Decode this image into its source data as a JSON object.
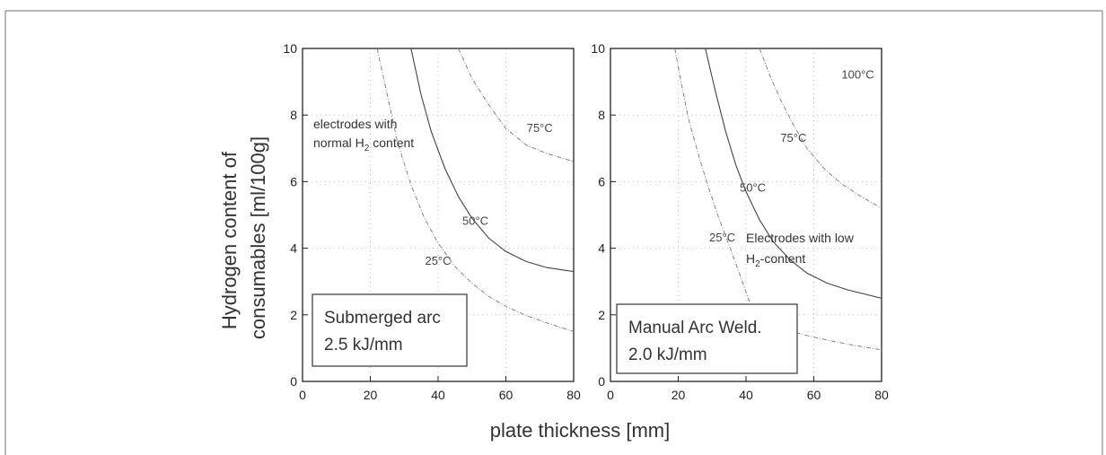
{
  "chart_data": [
    {
      "type": "line",
      "id": "submerged-arc",
      "xlabel": "plate thickness [mm]",
      "ylabel_lines": [
        "Hydrogen content of",
        "consumables [ml/100g]"
      ],
      "xlim": [
        0,
        80
      ],
      "ylim": [
        0,
        10
      ],
      "x_ticks": [
        0,
        20,
        40,
        60,
        80
      ],
      "y_ticks": [
        0,
        2,
        4,
        6,
        8,
        10
      ],
      "grid": true,
      "legend_box": {
        "line1": "Submerged arc",
        "line2": "2.5 kJ/mm"
      },
      "annotation": {
        "line1": "electrodes with",
        "line2_pre": "normal H",
        "line2_sub": "2",
        "line2_post": " content"
      },
      "series": [
        {
          "name": "25°C",
          "label": "25°C",
          "x": [
            22,
            25,
            28,
            32,
            36,
            40,
            45,
            50,
            55,
            60,
            66,
            72,
            80
          ],
          "y": [
            10,
            8.6,
            7.2,
            5.9,
            4.9,
            4.15,
            3.45,
            2.95,
            2.55,
            2.25,
            1.98,
            1.76,
            1.5
          ]
        },
        {
          "name": "50°C",
          "label": "50°C",
          "x": [
            32,
            35,
            38,
            42,
            46,
            50,
            55,
            60,
            66,
            72,
            80
          ],
          "y": [
            10,
            8.6,
            7.5,
            6.4,
            5.55,
            4.9,
            4.3,
            3.9,
            3.6,
            3.42,
            3.3
          ]
        },
        {
          "name": "75°C",
          "label": "75°C",
          "x": [
            46,
            50,
            55,
            60,
            66,
            72,
            80
          ],
          "y": [
            10,
            9.1,
            8.3,
            7.6,
            7.1,
            6.85,
            6.6
          ]
        }
      ],
      "curve_labels": [
        {
          "text": "25°C",
          "x": 40,
          "y": 3.5
        },
        {
          "text": "50°C",
          "x": 51,
          "y": 4.7
        },
        {
          "text": "75°C",
          "x": 70,
          "y": 7.5
        }
      ]
    },
    {
      "type": "line",
      "id": "manual-arc",
      "xlim": [
        0,
        80
      ],
      "ylim": [
        0,
        10
      ],
      "x_ticks": [
        0,
        20,
        40,
        60,
        80
      ],
      "y_ticks": [
        0,
        2,
        4,
        6,
        8,
        10
      ],
      "grid": true,
      "legend_box": {
        "line1": "Manual Arc Weld.",
        "line2": "2.0 kJ/mm"
      },
      "annotation": {
        "line1": "Electrodes with low",
        "line2_pre": "H",
        "line2_sub": "2",
        "line2_post": "-content"
      },
      "series": [
        {
          "name": "25°C",
          "label": "25°C",
          "x": [
            19,
            21,
            23,
            26,
            29,
            32,
            35,
            38,
            41
          ],
          "y": [
            10,
            8.9,
            7.9,
            6.8,
            5.8,
            4.9,
            4.1,
            3.25,
            2.4
          ]
        },
        {
          "name": "25°C (lower branch)",
          "label": "",
          "x": [
            40,
            44,
            48,
            52,
            56,
            60,
            66,
            72,
            80
          ],
          "y": [
            2.05,
            1.85,
            1.68,
            1.55,
            1.43,
            1.33,
            1.2,
            1.08,
            0.95
          ]
        },
        {
          "name": "50°C",
          "label": "50°C",
          "x": [
            28,
            31,
            34,
            37,
            40,
            44,
            48,
            53,
            58,
            64,
            70,
            80
          ],
          "y": [
            10,
            8.7,
            7.5,
            6.5,
            5.7,
            4.85,
            4.2,
            3.65,
            3.25,
            2.95,
            2.75,
            2.5
          ]
        },
        {
          "name": "75°C",
          "label": "75°C",
          "x": [
            44,
            47,
            50,
            54,
            58,
            63,
            68,
            74,
            80
          ],
          "y": [
            10,
            9.2,
            8.5,
            7.7,
            7.0,
            6.4,
            5.95,
            5.55,
            5.2
          ]
        }
      ],
      "curve_labels": [
        {
          "text": "25°C",
          "x": 33,
          "y": 4.2
        },
        {
          "text": "50°C",
          "x": 42,
          "y": 5.7
        },
        {
          "text": "75°C",
          "x": 54,
          "y": 7.2
        },
        {
          "text": "100°C",
          "x": 73,
          "y": 9.1
        }
      ]
    }
  ]
}
